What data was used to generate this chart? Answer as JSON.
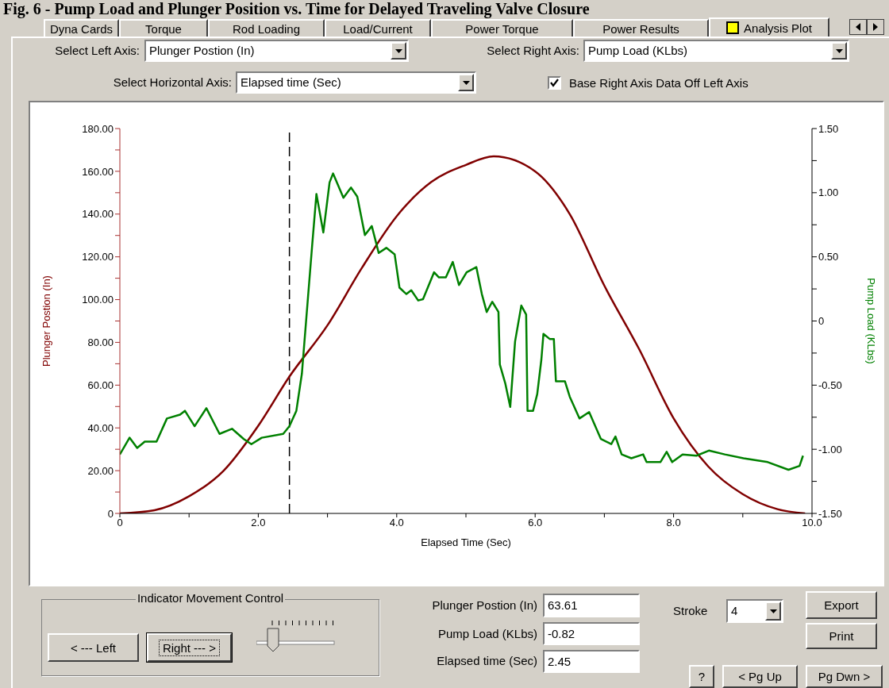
{
  "chart_data": {
    "type": "line",
    "title": "Fig. 6 - Pump Load and Plunger Position vs. Time for Delayed Traveling Valve Closure",
    "xlabel": "Elapsed Time (Sec)",
    "ylabel": "Plunger Postion (In)",
    "y2label": "Pump Load (KLbs)",
    "xlim": [
      0,
      10
    ],
    "xticks": [
      0,
      {
        "value": 1,
        "label": null
      },
      {
        "value": 2,
        "label": "2.0"
      },
      {
        "value": 3,
        "label": null
      },
      {
        "value": 4,
        "label": "4.0"
      },
      {
        "value": 5,
        "label": null
      },
      {
        "value": 6,
        "label": "6.0"
      },
      {
        "value": 7,
        "label": null
      },
      {
        "value": 8,
        "label": "8.0"
      },
      {
        "value": 9,
        "label": null
      },
      {
        "value": 10,
        "label": "10.0"
      }
    ],
    "ylim": [
      0,
      180
    ],
    "yticks": [
      0,
      {
        "value": 10,
        "label": null
      },
      {
        "value": 20,
        "label": "20.00"
      },
      {
        "value": 30,
        "label": null
      },
      {
        "value": 40,
        "label": "40.00"
      },
      {
        "value": 50,
        "label": null
      },
      {
        "value": 60,
        "label": "60.00"
      },
      {
        "value": 70,
        "label": null
      },
      {
        "value": 80,
        "label": "80.00"
      },
      {
        "value": 90,
        "label": null
      },
      {
        "value": 100,
        "label": "100.00"
      },
      {
        "value": 110,
        "label": null
      },
      {
        "value": 120,
        "label": "120.00"
      },
      {
        "value": 130,
        "label": null
      },
      {
        "value": 140,
        "label": "140.00"
      },
      {
        "value": 150,
        "label": null
      },
      {
        "value": 160,
        "label": "160.00"
      },
      {
        "value": 170,
        "label": null
      },
      {
        "value": 180,
        "label": "180.00"
      }
    ],
    "y2lim": [
      -1.5,
      1.5
    ],
    "y2ticks": [
      {
        "value": -1.5,
        "label": "-1.50"
      },
      {
        "value": -1.25,
        "label": null
      },
      {
        "value": -1,
        "label": "-1.00"
      },
      {
        "value": -0.75,
        "label": null
      },
      {
        "value": -0.5,
        "label": "-0.50"
      },
      {
        "value": -0.25,
        "label": null
      },
      0,
      {
        "value": 0.25,
        "label": null
      },
      {
        "value": 0.5,
        "label": "0.50"
      },
      {
        "value": 0.75,
        "label": null
      },
      {
        "value": 1,
        "label": "1.00"
      },
      {
        "value": 1.25,
        "label": null
      },
      {
        "value": 1.5,
        "label": "1.50"
      }
    ],
    "marker": "none",
    "line_style": "solid",
    "series": [
      {
        "color": "#800000",
        "x": [
          0,
          0.5,
          1,
          1.5,
          2,
          2.45,
          3,
          3.5,
          4,
          4.5,
          5,
          5.4,
          6,
          6.5,
          7,
          7.5,
          8,
          8.5,
          9,
          9.5,
          9.9
        ],
        "values": [
          0,
          1.5,
          8,
          20,
          41,
          64,
          88,
          115,
          139,
          155,
          163,
          167,
          160,
          140,
          106.5,
          77,
          44.5,
          22,
          9,
          2,
          0
        ]
      },
      {
        "color": "#008000",
        "axis": "y2",
        "x": [
          0,
          0.14,
          0.25,
          0.36,
          0.53,
          0.68,
          0.87,
          0.94,
          1.08,
          1.25,
          1.44,
          1.62,
          1.79,
          1.9,
          2.05,
          2.36,
          2.45,
          2.55,
          2.63,
          2.71,
          2.78,
          2.84,
          2.94,
          3.03,
          3.08,
          3.23,
          3.34,
          3.43,
          3.54,
          3.64,
          3.74,
          3.85,
          3.97,
          4.04,
          4.14,
          4.21,
          4.31,
          4.38,
          4.54,
          4.61,
          4.71,
          4.81,
          4.9,
          5.01,
          5.15,
          5.23,
          5.3,
          5.38,
          5.47,
          5.49,
          5.57,
          5.64,
          5.71,
          5.8,
          5.87,
          5.89,
          5.97,
          6.03,
          6.09,
          6.12,
          6.21,
          6.27,
          6.3,
          6.43,
          6.5,
          6.64,
          6.78,
          6.95,
          7.1,
          7.16,
          7.21,
          7.25,
          7.39,
          7.56,
          7.61,
          7.81,
          7.9,
          7.98,
          8.13,
          8.33,
          8.51,
          8.74,
          9.01,
          9.36,
          9.66,
          9.82,
          9.87
        ],
        "values": [
          -1.04,
          -0.91,
          -0.99,
          -0.94,
          -0.94,
          -0.76,
          -0.73,
          -0.7,
          -0.82,
          -0.68,
          -0.88,
          -0.84,
          -0.92,
          -0.96,
          -0.91,
          -0.88,
          -0.82,
          -0.7,
          -0.41,
          0.13,
          0.6,
          0.99,
          0.69,
          1.08,
          1.15,
          0.96,
          1.04,
          0.97,
          0.67,
          0.74,
          0.53,
          0.57,
          0.52,
          0.26,
          0.21,
          0.24,
          0.16,
          0.17,
          0.38,
          0.34,
          0.34,
          0.46,
          0.28,
          0.38,
          0.42,
          0.21,
          0.07,
          0.15,
          0.07,
          -0.34,
          -0.49,
          -0.67,
          -0.16,
          0.12,
          0.05,
          -0.7,
          -0.7,
          -0.57,
          -0.3,
          -0.1,
          -0.14,
          -0.14,
          -0.47,
          -0.47,
          -0.59,
          -0.76,
          -0.71,
          -0.92,
          -0.96,
          -0.9,
          -0.98,
          -1.04,
          -1.07,
          -1.04,
          -1.1,
          -1.1,
          -1.02,
          -1.1,
          -1.04,
          -1.05,
          -1.01,
          -1.04,
          -1.07,
          -1.1,
          -1.16,
          -1.13,
          -1.05
        ]
      }
    ],
    "ref_lines": [
      {
        "axis": "x",
        "value": 2.45,
        "color": "#000000",
        "line_style": "dashed"
      }
    ],
    "annotations": [
      "Dyna Cards",
      "Torque",
      "Rod Loading",
      "Load/Current",
      "Power Torque",
      "Power Results",
      "Analysis Plot",
      "Select Left Axis:",
      "Plunger Postion (In)",
      "Select Right Axis:",
      "Pump Load (KLbs)",
      "Select Horizontal Axis:",
      "Elapsed time (Sec)",
      "Base Right Axis Data Off Left Axis",
      "Indicator Movement Control",
      "< --- Left",
      "Right --- >",
      "Plunger Postion (In)",
      "63.61",
      "Pump Load (KLbs)",
      "-0.82",
      "Elapsed time (Sec)",
      "2.45",
      "Stroke",
      "4",
      "Export",
      "Print",
      "?",
      "< Pg Up",
      "Pg Dwn >"
    ]
  }
}
